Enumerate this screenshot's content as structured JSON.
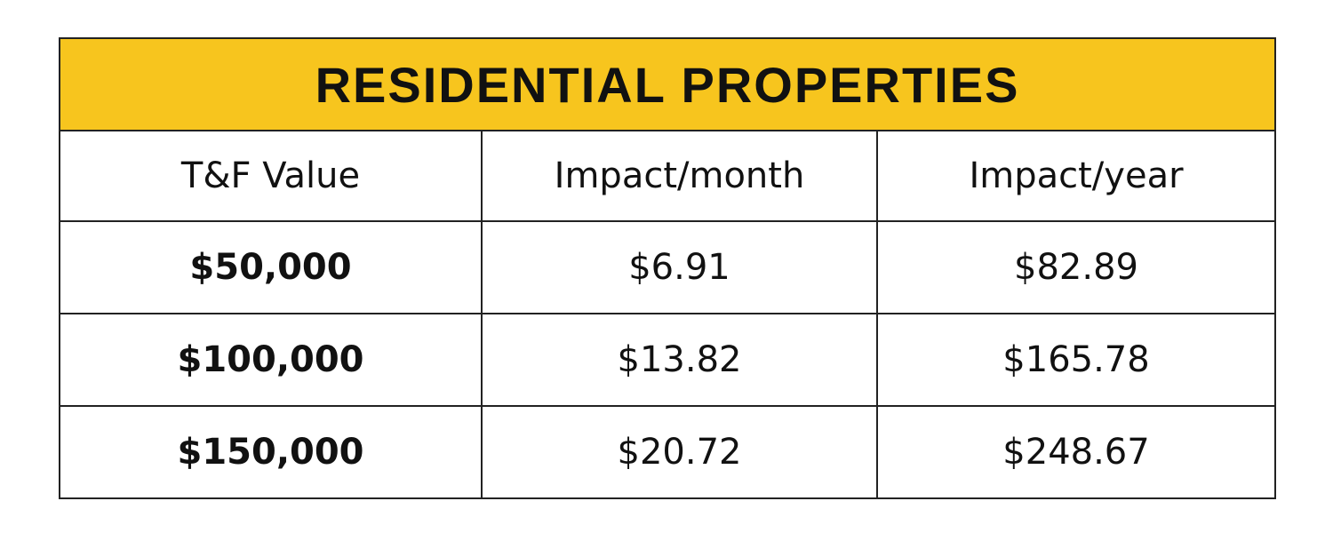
{
  "title": "RESIDENTIAL PROPERTIES",
  "table": {
    "header": [
      "T&F Value",
      "Impact/month",
      "Impact/year"
    ],
    "rows": [
      [
        "$50,000",
        "$6.91",
        "$82.89"
      ],
      [
        "$100,000",
        "$13.82",
        "$165.78"
      ],
      [
        "$150,000",
        "$20.72",
        "$248.67"
      ]
    ]
  }
}
